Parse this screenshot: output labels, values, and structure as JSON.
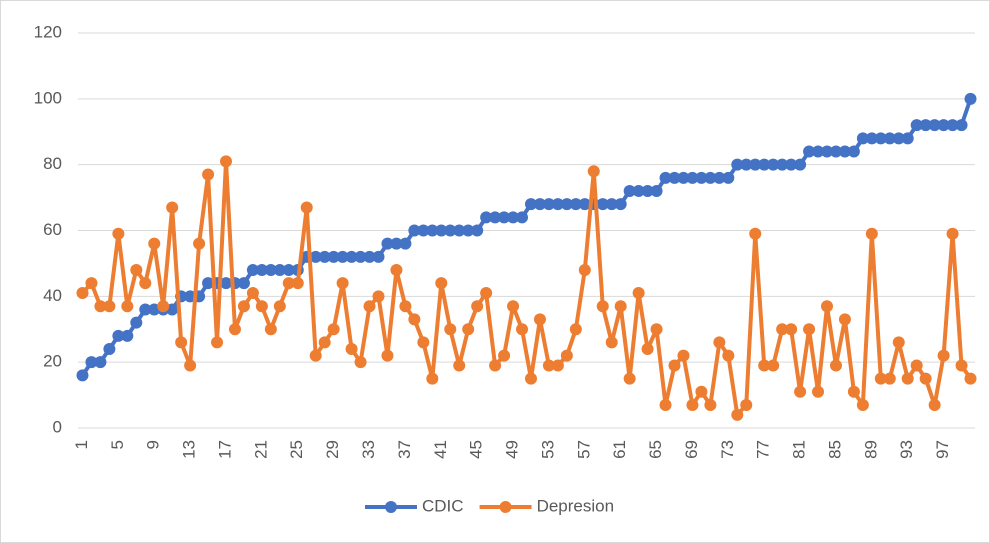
{
  "chart_data": {
    "type": "line",
    "categories": [
      "1",
      null,
      null,
      null,
      "5",
      null,
      null,
      null,
      "9",
      null,
      null,
      null,
      "13",
      null,
      null,
      null,
      "17",
      null,
      null,
      null,
      "21",
      null,
      null,
      null,
      "25",
      null,
      null,
      null,
      "29",
      null,
      null,
      null,
      "33",
      null,
      null,
      null,
      "37",
      null,
      null,
      null,
      "41",
      null,
      null,
      null,
      "45",
      null,
      null,
      null,
      "49",
      null,
      null,
      null,
      "53",
      null,
      null,
      null,
      "57",
      null,
      null,
      null,
      "61",
      null,
      null,
      null,
      "65",
      null,
      null,
      null,
      "69",
      null,
      null,
      null,
      "73",
      null,
      null,
      null,
      "77",
      null,
      null,
      null,
      "81",
      null,
      null,
      null,
      "85",
      null,
      null,
      null,
      "89",
      null,
      null,
      null,
      "93",
      null,
      null,
      null,
      "97",
      null,
      null,
      null
    ],
    "series": [
      {
        "name": "CDIC",
        "color": "#4472c4",
        "values": [
          16,
          20,
          20,
          24,
          28,
          28,
          32,
          36,
          36,
          36,
          36,
          40,
          40,
          40,
          44,
          44,
          44,
          44,
          44,
          48,
          48,
          48,
          48,
          48,
          48,
          52,
          52,
          52,
          52,
          52,
          52,
          52,
          52,
          52,
          56,
          56,
          56,
          60,
          60,
          60,
          60,
          60,
          60,
          60,
          60,
          64,
          64,
          64,
          64,
          64,
          68,
          68,
          68,
          68,
          68,
          68,
          68,
          68,
          68,
          68,
          68,
          72,
          72,
          72,
          72,
          76,
          76,
          76,
          76,
          76,
          76,
          76,
          76,
          80,
          80,
          80,
          80,
          80,
          80,
          80,
          80,
          84,
          84,
          84,
          84,
          84,
          84,
          88,
          88,
          88,
          88,
          88,
          88,
          92,
          92,
          92,
          92,
          92,
          92,
          100
        ]
      },
      {
        "name": "Depresion",
        "color": "#ed7d31",
        "values": [
          41,
          44,
          37,
          37,
          59,
          37,
          48,
          44,
          56,
          37,
          67,
          26,
          19,
          56,
          77,
          26,
          81,
          30,
          37,
          41,
          37,
          30,
          37,
          44,
          44,
          67,
          22,
          26,
          30,
          44,
          24,
          20,
          37,
          40,
          22,
          48,
          37,
          33,
          26,
          15,
          44,
          30,
          19,
          30,
          37,
          41,
          19,
          22,
          37,
          30,
          15,
          33,
          19,
          19,
          22,
          30,
          48,
          78,
          37,
          26,
          37,
          15,
          41,
          24,
          30,
          7,
          19,
          22,
          7,
          11,
          7,
          26,
          22,
          4,
          7,
          59,
          19,
          19,
          30,
          30,
          11,
          30,
          11,
          37,
          19,
          33,
          11,
          7,
          59,
          15,
          15,
          26,
          15,
          19,
          15,
          7,
          22,
          59,
          19,
          15
        ]
      }
    ],
    "ylim": [
      0,
      120
    ],
    "yticks": [
      0,
      20,
      40,
      60,
      80,
      100,
      120
    ],
    "grid": true,
    "legend": "bottom"
  }
}
